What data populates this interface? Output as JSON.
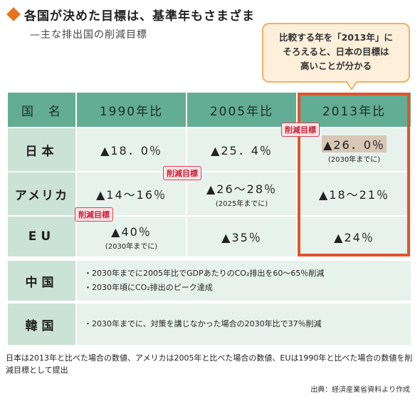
{
  "header": {
    "title": "各国が決めた目標は、基準年もさまざま",
    "subtitle": "—主な排出国の削減目標"
  },
  "callout": {
    "lines": [
      "比較する年を「2013年」に",
      "そろえると、日本の目標は",
      "高いことが分かる"
    ]
  },
  "table": {
    "headers": [
      "国　名",
      "1990年比",
      "2005年比",
      "2013年比"
    ],
    "rows": [
      {
        "country": "日本",
        "cells": [
          {
            "main": "▲18．0％",
            "note": ""
          },
          {
            "main": "▲25．4％",
            "note": ""
          },
          {
            "main": "▲26．0％",
            "note": "(2030年までに)"
          }
        ]
      },
      {
        "country": "アメリカ",
        "cells": [
          {
            "main": "▲14〜16％",
            "note": ""
          },
          {
            "main": "▲26〜28％",
            "note": "(2025年までに)"
          },
          {
            "main": "▲18〜21％",
            "note": ""
          }
        ]
      },
      {
        "country": "EU",
        "cells": [
          {
            "main": "▲40％",
            "note": "(2030年までに)"
          },
          {
            "main": "▲35％",
            "note": ""
          },
          {
            "main": "▲24％",
            "note": ""
          }
        ]
      }
    ],
    "china": {
      "country": "中国",
      "lines": [
        "・2030年までに2005年比でGDPあたりのCO₂排出を60〜65％削減",
        "・2030年頃にCO₂排出のピーク達成"
      ]
    },
    "korea": {
      "country": "韓国",
      "lines": [
        "・2030年までに、対策を講じなかった場合の2030年比で37％削減"
      ]
    }
  },
  "badges": {
    "label": "削減目標"
  },
  "footnote": "日本は2013年と比べた場合の数値、アメリカは2005年と比べた場合の数値、EUは1990年と比べた場合の数値を削減目標として提出",
  "source": "出典：経済産業省資料より作成",
  "colors": {
    "header_green": "#63ad95",
    "label_green": "#cbe2d6",
    "cell_green": "#e8f2ed",
    "highlight": "#e0542a",
    "badge_red": "#d7435a"
  }
}
